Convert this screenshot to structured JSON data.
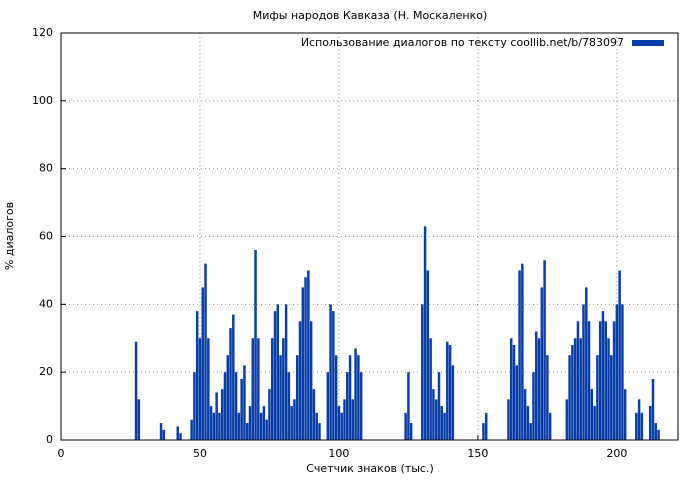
{
  "chart_data": {
    "type": "bar",
    "title": "Мифы народов Кавказа (Н. Москаленко)",
    "x_label": "Счетчик знаков (тыс.)",
    "y_label": "% диалогов",
    "x": [
      27,
      28,
      36,
      37,
      42,
      43,
      47,
      48,
      49,
      50,
      51,
      52,
      53,
      54,
      55,
      56,
      57,
      58,
      59,
      60,
      61,
      62,
      63,
      64,
      65,
      66,
      67,
      68,
      69,
      70,
      71,
      72,
      73,
      74,
      75,
      76,
      77,
      78,
      79,
      80,
      81,
      82,
      83,
      84,
      85,
      86,
      87,
      88,
      89,
      90,
      91,
      92,
      93,
      96,
      97,
      98,
      99,
      100,
      101,
      102,
      103,
      104,
      105,
      106,
      107,
      108,
      124,
      125,
      126,
      130,
      131,
      132,
      133,
      134,
      135,
      136,
      137,
      138,
      139,
      140,
      141,
      152,
      153,
      161,
      162,
      163,
      164,
      165,
      166,
      167,
      168,
      169,
      170,
      171,
      172,
      173,
      174,
      175,
      176,
      182,
      183,
      184,
      185,
      186,
      187,
      188,
      189,
      190,
      191,
      192,
      193,
      194,
      195,
      196,
      197,
      198,
      199,
      200,
      201,
      202,
      203,
      207,
      208,
      209,
      212,
      213,
      214,
      215
    ],
    "series": [
      {
        "name": "Использование диалогов по тексту coollib.net/b/783097",
        "color": "#0a3fa8",
        "values": [
          29,
          12,
          5,
          3,
          4,
          2,
          6,
          20,
          38,
          30,
          45,
          52,
          30,
          10,
          8,
          14,
          8,
          15,
          20,
          25,
          33,
          37,
          20,
          8,
          18,
          22,
          5,
          10,
          30,
          56,
          30,
          8,
          10,
          6,
          15,
          30,
          38,
          40,
          25,
          30,
          40,
          20,
          10,
          12,
          25,
          35,
          45,
          48,
          50,
          35,
          15,
          8,
          5,
          20,
          40,
          38,
          25,
          10,
          8,
          12,
          20,
          25,
          12,
          27,
          25,
          20,
          8,
          20,
          5,
          40,
          63,
          50,
          30,
          15,
          12,
          20,
          10,
          8,
          29,
          28,
          22,
          5,
          8,
          12,
          30,
          28,
          22,
          50,
          52,
          15,
          10,
          5,
          20,
          32,
          30,
          45,
          53,
          25,
          8,
          12,
          25,
          28,
          30,
          35,
          30,
          40,
          45,
          35,
          15,
          10,
          25,
          35,
          38,
          35,
          30,
          25,
          35,
          40,
          50,
          40,
          15,
          8,
          12,
          8,
          10,
          18,
          5,
          3
        ]
      }
    ],
    "xlim": [
      0,
      222
    ],
    "xticks": [
      0,
      50,
      100,
      150,
      200
    ],
    "ylim": [
      0,
      120
    ],
    "yticks": [
      0,
      20,
      40,
      60,
      80,
      100,
      120
    ],
    "grid": true,
    "legend": "top-right"
  }
}
